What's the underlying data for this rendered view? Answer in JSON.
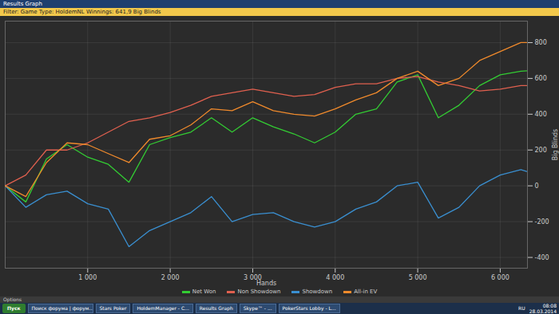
{
  "window": {
    "title": "Results Graph",
    "filter": "Filter: Game Type: HoldemNL  Winnings: 641,9 Big Blinds",
    "options_bar": "Options"
  },
  "chart_data": {
    "type": "line",
    "x_label": "Hands",
    "y_label": "Big Blinds",
    "x": [
      0,
      250,
      500,
      750,
      1000,
      1250,
      1500,
      1750,
      2000,
      2250,
      2500,
      2750,
      3000,
      3250,
      3500,
      3750,
      4000,
      4250,
      4500,
      4750,
      5000,
      5250,
      5500,
      5750,
      6000,
      6250,
      6320
    ],
    "series": [
      {
        "name": "Net Won",
        "color": "#33cc33",
        "values": [
          0,
          -90,
          150,
          230,
          160,
          120,
          20,
          230,
          270,
          300,
          380,
          300,
          380,
          330,
          290,
          240,
          300,
          400,
          430,
          580,
          620,
          380,
          450,
          560,
          620,
          640,
          642
        ]
      },
      {
        "name": "Non Showdown",
        "color": "#e0604f",
        "values": [
          0,
          60,
          200,
          200,
          240,
          300,
          360,
          380,
          410,
          450,
          500,
          520,
          540,
          520,
          500,
          510,
          550,
          570,
          570,
          600,
          610,
          580,
          560,
          530,
          540,
          560,
          560
        ]
      },
      {
        "name": "Showdown",
        "color": "#3a8fd0",
        "values": [
          0,
          -120,
          -50,
          -30,
          -100,
          -130,
          -340,
          -250,
          -200,
          -150,
          -60,
          -200,
          -160,
          -150,
          -200,
          -230,
          -200,
          -130,
          -90,
          0,
          20,
          -180,
          -120,
          0,
          60,
          90,
          80
        ]
      },
      {
        "name": "All-in EV",
        "color": "#f08a2c",
        "values": [
          0,
          -60,
          130,
          240,
          230,
          180,
          130,
          260,
          280,
          340,
          430,
          420,
          470,
          420,
          400,
          390,
          430,
          480,
          520,
          600,
          640,
          560,
          600,
          700,
          750,
          800,
          800
        ]
      }
    ],
    "xlim": [
      0,
      6330
    ],
    "xticks": [
      {
        "value": 1000,
        "label": "1 000"
      },
      {
        "value": 2000,
        "label": "2 000"
      },
      {
        "value": 3000,
        "label": "3 000"
      },
      {
        "value": 4000,
        "label": "4 000"
      },
      {
        "value": 5000,
        "label": "5 000"
      },
      {
        "value": 6000,
        "label": "6 000"
      }
    ],
    "ylim": [
      -460,
      920
    ],
    "yticks": [
      -400,
      -200,
      0,
      200,
      400,
      600,
      800
    ],
    "grid": true,
    "legend": "bottom"
  },
  "taskbar": {
    "start": "Пуск",
    "items": [
      "Поиск форума | форум...",
      "Stars Poker",
      "HoldemManager - C...",
      "Results Graph",
      "Skype™ - ...",
      "PokerStars Lobby - L..."
    ],
    "tray": "RU",
    "clock": "08:08",
    "date": "28.03.2014"
  }
}
